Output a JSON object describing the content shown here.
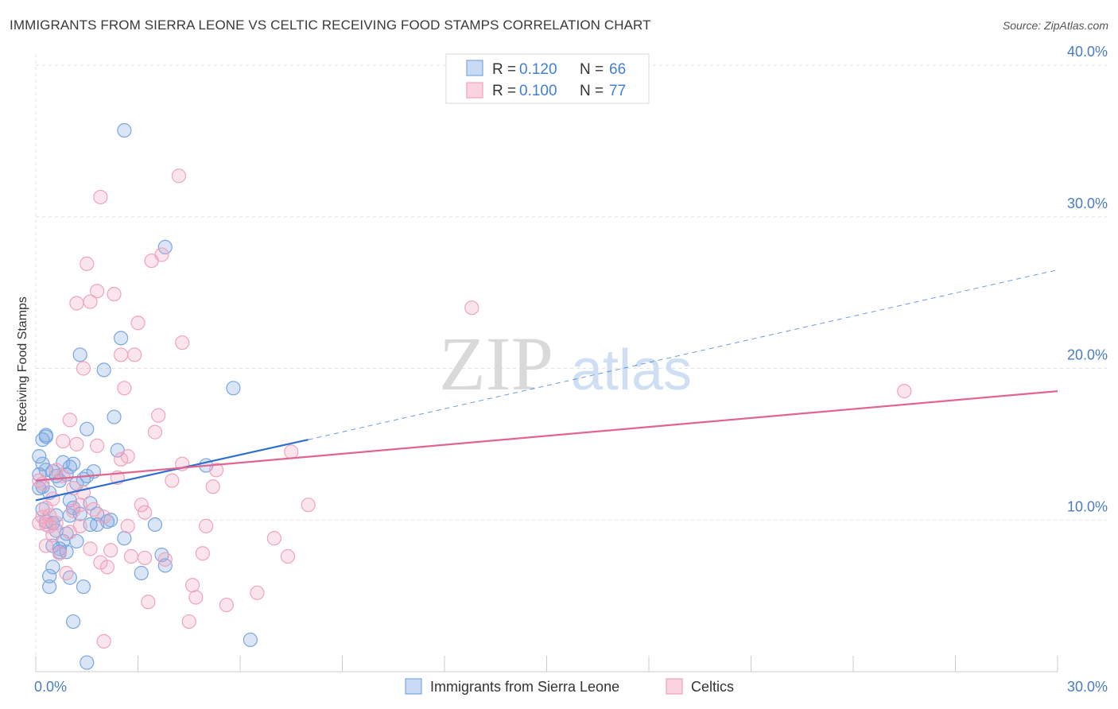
{
  "chart_data": {
    "type": "scatter",
    "title": "IMMIGRANTS FROM SIERRA LEONE VS CELTIC RECEIVING FOOD STAMPS CORRELATION CHART",
    "source": "Source: ZipAtlas.com",
    "xlabel": "",
    "ylabel": "Receiving Food Stamps",
    "xlim": [
      0,
      30
    ],
    "ylim": [
      0,
      40
    ],
    "x_ticks": [
      {
        "value": 0,
        "label": "0.0%"
      },
      {
        "value": 30,
        "label": "30.0%"
      }
    ],
    "y_ticks": [
      {
        "value": 10,
        "label": "10.0%"
      },
      {
        "value": 20,
        "label": "20.0%"
      },
      {
        "value": 30,
        "label": "30.0%"
      },
      {
        "value": 40,
        "label": "40.0%"
      }
    ],
    "watermark": {
      "part1": "ZIP",
      "part2": "atlas"
    },
    "legend": {
      "r_label": "R =",
      "n_label": "N =",
      "entries": [
        {
          "r": "0.120",
          "n": "66"
        },
        {
          "r": "0.100",
          "n": "77"
        }
      ]
    },
    "series": [
      {
        "name": "Immigrants from Sierra Leone",
        "color": "#7aa6e0",
        "line_color": "#2f6fd0",
        "trend": {
          "x0": 0,
          "y0": 11.3,
          "x1": 8.0,
          "y1": 15.3,
          "dash_x1": 30,
          "dash_y1": 26.5
        },
        "points": [
          [
            0.1,
            14.2
          ],
          [
            0.1,
            13.0
          ],
          [
            0.1,
            12.1
          ],
          [
            0.2,
            13.7
          ],
          [
            0.2,
            15.3
          ],
          [
            0.2,
            10.7
          ],
          [
            0.3,
            15.5
          ],
          [
            0.3,
            13.3
          ],
          [
            0.3,
            9.9
          ],
          [
            0.4,
            6.3
          ],
          [
            0.4,
            5.6
          ],
          [
            0.5,
            13.2
          ],
          [
            0.5,
            8.3
          ],
          [
            0.5,
            6.9
          ],
          [
            0.6,
            12.9
          ],
          [
            0.6,
            9.3
          ],
          [
            0.7,
            12.6
          ],
          [
            0.7,
            8.1
          ],
          [
            0.8,
            13.8
          ],
          [
            0.8,
            8.6
          ],
          [
            0.9,
            9.1
          ],
          [
            0.9,
            7.9
          ],
          [
            1.0,
            13.5
          ],
          [
            1.0,
            11.3
          ],
          [
            1.0,
            6.2
          ],
          [
            1.1,
            13.7
          ],
          [
            1.1,
            10.8
          ],
          [
            1.1,
            3.3
          ],
          [
            1.2,
            12.4
          ],
          [
            1.3,
            20.9
          ],
          [
            1.3,
            10.4
          ],
          [
            1.4,
            5.6
          ],
          [
            1.5,
            16.0
          ],
          [
            1.5,
            12.9
          ],
          [
            1.6,
            11.1
          ],
          [
            1.6,
            9.7
          ],
          [
            1.7,
            13.2
          ],
          [
            1.8,
            10.4
          ],
          [
            2.0,
            19.9
          ],
          [
            2.1,
            9.9
          ],
          [
            2.3,
            16.8
          ],
          [
            2.4,
            14.6
          ],
          [
            2.5,
            22.0
          ],
          [
            2.6,
            35.7
          ],
          [
            2.6,
            8.8
          ],
          [
            3.1,
            6.5
          ],
          [
            3.5,
            9.7
          ],
          [
            3.7,
            7.7
          ],
          [
            3.8,
            7.0
          ],
          [
            3.8,
            28.0
          ],
          [
            5.0,
            13.6
          ],
          [
            5.8,
            18.7
          ],
          [
            6.3,
            2.1
          ],
          [
            1.5,
            0.6
          ],
          [
            0.3,
            15.6
          ],
          [
            0.6,
            10.3
          ],
          [
            0.9,
            13.0
          ],
          [
            1.2,
            8.6
          ],
          [
            0.4,
            11.8
          ],
          [
            1.8,
            9.7
          ],
          [
            0.2,
            12.2
          ],
          [
            1.4,
            12.7
          ],
          [
            0.7,
            7.9
          ],
          [
            2.2,
            10.0
          ],
          [
            0.5,
            9.8
          ],
          [
            1.0,
            10.3
          ]
        ]
      },
      {
        "name": "Celtics",
        "color": "#f0a3bd",
        "line_color": "#e06690",
        "trend": {
          "x0": 0,
          "y0": 12.6,
          "x1": 30,
          "y1": 18.5
        },
        "points": [
          [
            0.1,
            9.8
          ],
          [
            0.2,
            12.4
          ],
          [
            0.2,
            10.2
          ],
          [
            0.3,
            8.3
          ],
          [
            0.3,
            10.8
          ],
          [
            0.4,
            9.6
          ],
          [
            0.5,
            9.0
          ],
          [
            0.5,
            11.4
          ],
          [
            0.6,
            9.8
          ],
          [
            0.6,
            13.3
          ],
          [
            0.7,
            7.8
          ],
          [
            0.8,
            15.2
          ],
          [
            0.9,
            6.5
          ],
          [
            1.0,
            16.6
          ],
          [
            1.0,
            9.2
          ],
          [
            1.1,
            12.1
          ],
          [
            1.2,
            24.3
          ],
          [
            1.2,
            15.0
          ],
          [
            1.3,
            9.6
          ],
          [
            1.4,
            20.0
          ],
          [
            1.4,
            11.8
          ],
          [
            1.5,
            26.9
          ],
          [
            1.6,
            24.4
          ],
          [
            1.6,
            8.1
          ],
          [
            1.7,
            10.7
          ],
          [
            1.8,
            25.1
          ],
          [
            1.8,
            14.9
          ],
          [
            1.9,
            7.2
          ],
          [
            2.0,
            10.2
          ],
          [
            2.1,
            6.9
          ],
          [
            2.2,
            8.0
          ],
          [
            2.3,
            24.9
          ],
          [
            2.4,
            12.8
          ],
          [
            2.5,
            20.9
          ],
          [
            2.5,
            14.0
          ],
          [
            2.6,
            18.7
          ],
          [
            2.7,
            9.6
          ],
          [
            2.8,
            7.6
          ],
          [
            2.9,
            20.9
          ],
          [
            3.0,
            23.0
          ],
          [
            3.1,
            11.0
          ],
          [
            3.2,
            10.5
          ],
          [
            3.3,
            4.6
          ],
          [
            3.4,
            27.1
          ],
          [
            3.5,
            15.8
          ],
          [
            3.6,
            16.9
          ],
          [
            3.7,
            27.5
          ],
          [
            3.8,
            7.4
          ],
          [
            4.0,
            12.6
          ],
          [
            4.2,
            32.7
          ],
          [
            4.3,
            13.7
          ],
          [
            4.3,
            21.7
          ],
          [
            4.5,
            3.3
          ],
          [
            4.6,
            5.7
          ],
          [
            4.7,
            4.9
          ],
          [
            5.0,
            9.6
          ],
          [
            5.2,
            12.2
          ],
          [
            5.3,
            13.3
          ],
          [
            5.6,
            4.4
          ],
          [
            6.5,
            5.2
          ],
          [
            7.0,
            8.8
          ],
          [
            7.4,
            7.6
          ],
          [
            7.5,
            14.5
          ],
          [
            8.0,
            11.0
          ],
          [
            12.8,
            24.0
          ],
          [
            25.5,
            18.5
          ],
          [
            1.9,
            31.3
          ],
          [
            2.0,
            2.0
          ],
          [
            4.9,
            7.8
          ],
          [
            0.3,
            9.7
          ],
          [
            1.3,
            11.0
          ],
          [
            0.8,
            12.9
          ],
          [
            2.7,
            14.2
          ],
          [
            0.1,
            12.6
          ],
          [
            1.1,
            10.6
          ],
          [
            3.2,
            7.5
          ],
          [
            0.4,
            10.3
          ]
        ]
      }
    ]
  }
}
